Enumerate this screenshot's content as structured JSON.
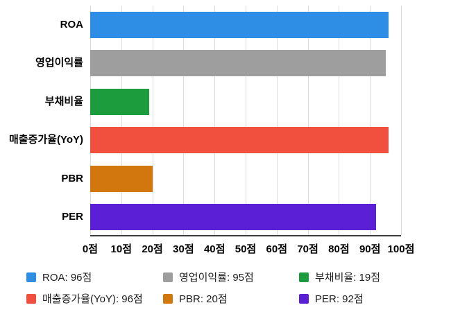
{
  "chart_data": {
    "type": "bar",
    "orientation": "horizontal",
    "title": "",
    "xlabel": "",
    "ylabel": "",
    "categories": [
      "ROA",
      "영업이익률",
      "부채비율",
      "매출증가율(YoY)",
      "PBR",
      "PER"
    ],
    "values": [
      96,
      95,
      19,
      96,
      20,
      92
    ],
    "colors": [
      "#2E8EE5",
      "#9E9E9E",
      "#1C9C3C",
      "#F2503F",
      "#D2770E",
      "#5B1FD6"
    ],
    "unit": "점",
    "xlim": [
      0,
      100
    ],
    "x_ticks": [
      0,
      10,
      20,
      30,
      40,
      50,
      60,
      70,
      80,
      90,
      100
    ],
    "x_tick_labels": [
      "0점",
      "10점",
      "20점",
      "30점",
      "40점",
      "50점",
      "60점",
      "70점",
      "80점",
      "90점",
      "100점"
    ],
    "grid": true,
    "legend": {
      "position": "bottom",
      "items": [
        {
          "label": "ROA: 96점",
          "color": "#2E8EE5"
        },
        {
          "label": "영업이익률: 95점",
          "color": "#9E9E9E"
        },
        {
          "label": "부채비율: 19점",
          "color": "#1C9C3C"
        },
        {
          "label": "매출증가율(YoY): 96점",
          "color": "#F2503F"
        },
        {
          "label": "PBR: 20점",
          "color": "#D2770E"
        },
        {
          "label": "PER: 92점",
          "color": "#5B1FD6"
        }
      ]
    }
  }
}
